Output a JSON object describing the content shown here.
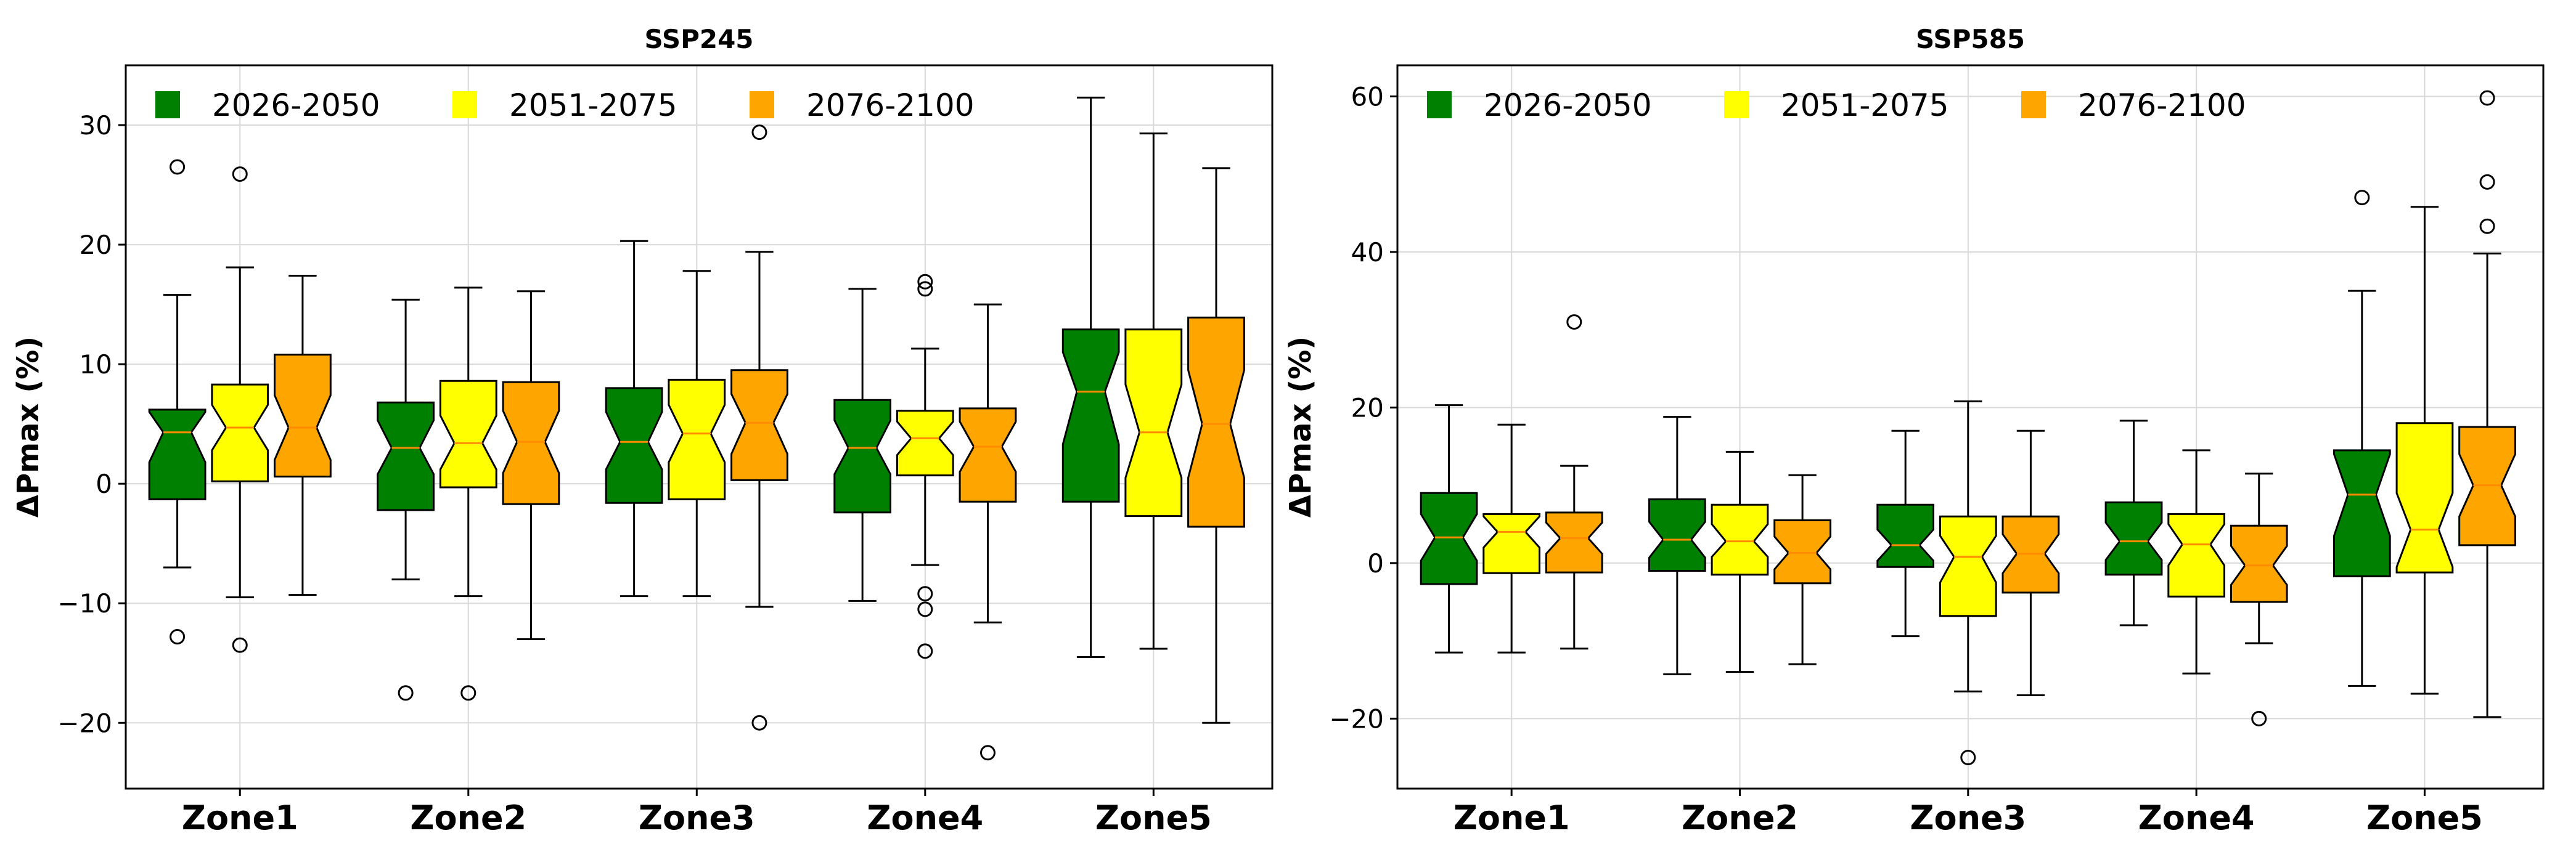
{
  "chart_data": [
    {
      "type": "box",
      "title": "SSP245",
      "xlabel": "",
      "ylabel": "ΔPmax (%)",
      "ylim": [
        -25.5,
        35
      ],
      "yticks": [
        -20,
        -10,
        0,
        10,
        20,
        30
      ],
      "ytick_labels": [
        "−20",
        "−10",
        "0",
        "10",
        "20",
        "30"
      ],
      "categories": [
        "Zone1",
        "Zone2",
        "Zone3",
        "Zone4",
        "Zone5"
      ],
      "grid": true,
      "legend_position": "top-left",
      "series": [
        {
          "name": "2026-2050",
          "color": "#008000",
          "boxes": [
            {
              "whislo": -7.0,
              "q1": -1.3,
              "med": 4.3,
              "q3": 6.2,
              "whishi": 15.8,
              "notch_lo": 1.8,
              "notch_hi": 6.0,
              "fliers": [
                -12.8,
                26.5
              ]
            },
            {
              "whislo": -8.0,
              "q1": -2.2,
              "med": 3.0,
              "q3": 6.8,
              "whishi": 15.4,
              "notch_lo": 0.8,
              "notch_hi": 5.3,
              "fliers": [
                -17.5
              ]
            },
            {
              "whislo": -9.4,
              "q1": -1.6,
              "med": 3.5,
              "q3": 8.0,
              "whishi": 20.3,
              "notch_lo": 1.2,
              "notch_hi": 6.0,
              "fliers": []
            },
            {
              "whislo": -9.8,
              "q1": -2.4,
              "med": 3.0,
              "q3": 7.0,
              "whishi": 16.3,
              "notch_lo": 0.8,
              "notch_hi": 5.3,
              "fliers": []
            },
            {
              "whislo": -14.5,
              "q1": -1.5,
              "med": 7.7,
              "q3": 12.9,
              "whishi": 32.3,
              "notch_lo": 3.3,
              "notch_hi": 11.0,
              "fliers": []
            }
          ]
        },
        {
          "name": "2051-2075",
          "color": "#ffff00",
          "boxes": [
            {
              "whislo": -9.5,
              "q1": 0.2,
              "med": 4.7,
              "q3": 8.3,
              "whishi": 18.1,
              "notch_lo": 2.8,
              "notch_hi": 6.6,
              "fliers": [
                -13.5,
                25.9
              ]
            },
            {
              "whislo": -9.4,
              "q1": -0.3,
              "med": 3.4,
              "q3": 8.6,
              "whishi": 16.4,
              "notch_lo": 1.2,
              "notch_hi": 5.7,
              "fliers": [
                -17.5
              ]
            },
            {
              "whislo": -9.4,
              "q1": -1.3,
              "med": 4.2,
              "q3": 8.7,
              "whishi": 17.8,
              "notch_lo": 1.8,
              "notch_hi": 6.6,
              "fliers": []
            },
            {
              "whislo": -6.8,
              "q1": 0.7,
              "med": 3.8,
              "q3": 6.1,
              "whishi": 11.3,
              "notch_lo": 2.4,
              "notch_hi": 5.2,
              "fliers": [
                -14.0,
                -10.5,
                -9.2,
                16.3,
                16.9
              ]
            },
            {
              "whislo": -13.8,
              "q1": -2.7,
              "med": 4.3,
              "q3": 12.9,
              "whishi": 29.3,
              "notch_lo": 0.5,
              "notch_hi": 8.3,
              "fliers": []
            }
          ]
        },
        {
          "name": "2076-2100",
          "color": "#ffa500",
          "boxes": [
            {
              "whislo": -9.3,
              "q1": 0.6,
              "med": 4.7,
              "q3": 10.8,
              "whishi": 17.4,
              "notch_lo": 2.0,
              "notch_hi": 7.4,
              "fliers": []
            },
            {
              "whislo": -13.0,
              "q1": -1.7,
              "med": 3.5,
              "q3": 8.5,
              "whishi": 16.1,
              "notch_lo": 0.9,
              "notch_hi": 6.1,
              "fliers": []
            },
            {
              "whislo": -10.3,
              "q1": 0.3,
              "med": 5.1,
              "q3": 9.5,
              "whishi": 19.4,
              "notch_lo": 2.5,
              "notch_hi": 7.5,
              "fliers": [
                -20.0,
                29.4
              ]
            },
            {
              "whislo": -11.6,
              "q1": -1.5,
              "med": 3.1,
              "q3": 6.3,
              "whishi": 15.0,
              "notch_lo": 1.0,
              "notch_hi": 5.2,
              "fliers": [
                -22.5
              ]
            },
            {
              "whislo": -20.0,
              "q1": -3.6,
              "med": 5.0,
              "q3": 13.9,
              "whishi": 26.4,
              "notch_lo": 0.5,
              "notch_hi": 9.5,
              "fliers": []
            }
          ]
        }
      ]
    },
    {
      "type": "box",
      "title": "SSP585",
      "xlabel": "",
      "ylabel": "ΔPmax (%)",
      "ylim": [
        -29,
        64
      ],
      "yticks": [
        -20,
        0,
        20,
        40,
        60
      ],
      "ytick_labels": [
        "−20",
        "0",
        "20",
        "40",
        "60"
      ],
      "categories": [
        "Zone1",
        "Zone2",
        "Zone3",
        "Zone4",
        "Zone5"
      ],
      "grid": true,
      "legend_position": "top-left",
      "series": [
        {
          "name": "2026-2050",
          "color": "#008000",
          "boxes": [
            {
              "whislo": -11.5,
              "q1": -2.7,
              "med": 3.3,
              "q3": 9.0,
              "whishi": 20.3,
              "notch_lo": 0.3,
              "notch_hi": 6.3,
              "fliers": []
            },
            {
              "whislo": -14.3,
              "q1": -1.0,
              "med": 3.0,
              "q3": 8.2,
              "whishi": 18.8,
              "notch_lo": 0.7,
              "notch_hi": 5.3,
              "fliers": []
            },
            {
              "whislo": -9.4,
              "q1": -0.5,
              "med": 2.3,
              "q3": 7.5,
              "whishi": 17.0,
              "notch_lo": 0.3,
              "notch_hi": 4.3,
              "fliers": []
            },
            {
              "whislo": -8.0,
              "q1": -1.5,
              "med": 2.8,
              "q3": 7.8,
              "whishi": 18.3,
              "notch_lo": 0.4,
              "notch_hi": 5.2,
              "fliers": []
            },
            {
              "whislo": -15.8,
              "q1": -1.7,
              "med": 8.8,
              "q3": 14.5,
              "whishi": 35.0,
              "notch_lo": 3.5,
              "notch_hi": 14.0,
              "fliers": [
                47.0
              ]
            }
          ]
        },
        {
          "name": "2051-2075",
          "color": "#ffff00",
          "boxes": [
            {
              "whislo": -11.5,
              "q1": -1.3,
              "med": 4.0,
              "q3": 6.3,
              "whishi": 17.8,
              "notch_lo": 2.0,
              "notch_hi": 6.0,
              "fliers": []
            },
            {
              "whislo": -14.0,
              "q1": -1.5,
              "med": 2.8,
              "q3": 7.5,
              "whishi": 14.3,
              "notch_lo": 0.8,
              "notch_hi": 5.0,
              "fliers": []
            },
            {
              "whislo": -16.5,
              "q1": -6.8,
              "med": 0.8,
              "q3": 6.0,
              "whishi": 20.8,
              "notch_lo": -2.5,
              "notch_hi": 3.5,
              "fliers": [
                -25.0
              ]
            },
            {
              "whislo": -14.2,
              "q1": -4.3,
              "med": 2.4,
              "q3": 6.3,
              "whishi": 14.5,
              "notch_lo": -0.3,
              "notch_hi": 5.0,
              "fliers": []
            },
            {
              "whislo": -16.8,
              "q1": -1.2,
              "med": 4.3,
              "q3": 18.0,
              "whishi": 45.8,
              "notch_lo": -0.5,
              "notch_hi": 9.0,
              "fliers": []
            }
          ]
        },
        {
          "name": "2076-2100",
          "color": "#ffa500",
          "boxes": [
            {
              "whislo": -11.0,
              "q1": -1.2,
              "med": 3.2,
              "q3": 6.5,
              "whishi": 12.5,
              "notch_lo": 1.2,
              "notch_hi": 5.2,
              "fliers": [
                31.0
              ]
            },
            {
              "whislo": -13.0,
              "q1": -2.6,
              "med": 1.3,
              "q3": 5.5,
              "whishi": 11.3,
              "notch_lo": -0.8,
              "notch_hi": 3.4,
              "fliers": []
            },
            {
              "whislo": -17.0,
              "q1": -3.8,
              "med": 1.2,
              "q3": 6.0,
              "whishi": 17.0,
              "notch_lo": -1.3,
              "notch_hi": 3.7,
              "fliers": []
            },
            {
              "whislo": -10.3,
              "q1": -5.0,
              "med": -0.3,
              "q3": 4.8,
              "whishi": 11.5,
              "notch_lo": -2.8,
              "notch_hi": 2.2,
              "fliers": [
                -20.0
              ]
            },
            {
              "whislo": -19.8,
              "q1": 2.3,
              "med": 10.0,
              "q3": 17.5,
              "whishi": 39.8,
              "notch_lo": 6.0,
              "notch_hi": 14.0,
              "fliers": [
                43.3,
                49.0,
                59.8
              ]
            }
          ]
        }
      ]
    }
  ]
}
